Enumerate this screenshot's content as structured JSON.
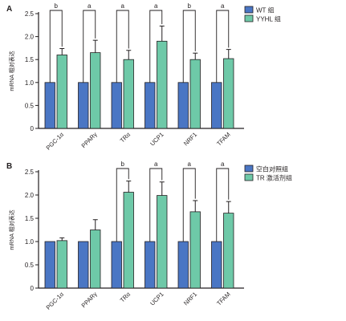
{
  "colors": {
    "control": "#4a76c4",
    "treatment": "#6ec9a8",
    "axis": "#231f20"
  },
  "chart_data": [
    {
      "panel_label": "A",
      "type": "bar",
      "ylabel": "mRNA 相对表达",
      "ylim": [
        0,
        2.5
      ],
      "yticks": [
        "0",
        "0.5",
        "1.0",
        "1.5",
        "2.0",
        "2.5"
      ],
      "categories": [
        "PGC-1α",
        "PPARγ",
        "TRα",
        "UCP1",
        "NRF1",
        "TFAM"
      ],
      "series": [
        {
          "name": "WT 组",
          "values": [
            1.0,
            1.0,
            1.0,
            1.0,
            1.0,
            1.0
          ],
          "errors": [
            0,
            0,
            0,
            0,
            0,
            0
          ]
        },
        {
          "name": "YYHL 组",
          "values": [
            1.6,
            1.65,
            1.5,
            1.9,
            1.5,
            1.52
          ],
          "errors": [
            0.14,
            0.27,
            0.2,
            0.33,
            0.14,
            0.2
          ]
        }
      ],
      "significance": [
        "b",
        "a",
        "a",
        "a",
        "b",
        "a"
      ],
      "legend_position": "top-right"
    },
    {
      "panel_label": "B",
      "type": "bar",
      "ylabel": "mRNA 相对表达",
      "ylim": [
        0,
        2.5
      ],
      "yticks": [
        "0",
        "0.5",
        "1.0",
        "1.5",
        "2.0",
        "2.5"
      ],
      "categories": [
        "PGC-1α",
        "PPARγ",
        "TRα",
        "UCP1",
        "NRF1",
        "TFAM"
      ],
      "series": [
        {
          "name": "空白对照组",
          "values": [
            1.0,
            1.0,
            1.0,
            1.0,
            1.0,
            1.0
          ],
          "errors": [
            0,
            0,
            0,
            0,
            0,
            0
          ]
        },
        {
          "name": "TR 激活剂组",
          "values": [
            1.02,
            1.25,
            2.06,
            1.99,
            1.64,
            1.61
          ],
          "errors": [
            0.06,
            0.22,
            0.24,
            0.29,
            0.24,
            0.25
          ]
        }
      ],
      "significance": [
        "",
        "",
        "b",
        "a",
        "a",
        "a"
      ],
      "legend_position": "top-right"
    }
  ]
}
